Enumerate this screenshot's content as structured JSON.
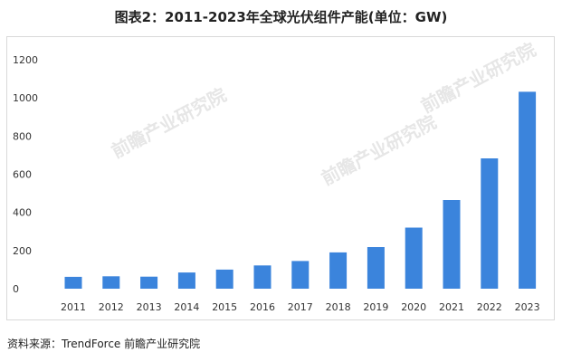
{
  "chart_data": {
    "type": "bar",
    "title": "图表2：2011-2023年全球光伏组件产能(单位：GW)",
    "categories": [
      "2011",
      "2012",
      "2013",
      "2014",
      "2015",
      "2016",
      "2017",
      "2018",
      "2019",
      "2020",
      "2021",
      "2022",
      "2023"
    ],
    "values": [
      62,
      65,
      63,
      85,
      100,
      122,
      145,
      190,
      218,
      320,
      465,
      683,
      1032
    ],
    "ylim": [
      0,
      1200
    ],
    "yticks": [
      0,
      200,
      400,
      600,
      800,
      1000,
      1200
    ],
    "grid": false,
    "bar_color": "#3b84dc"
  },
  "source": "资料来源：TrendForce 前瞻产业研究院",
  "watermark": "前瞻产业研究院"
}
